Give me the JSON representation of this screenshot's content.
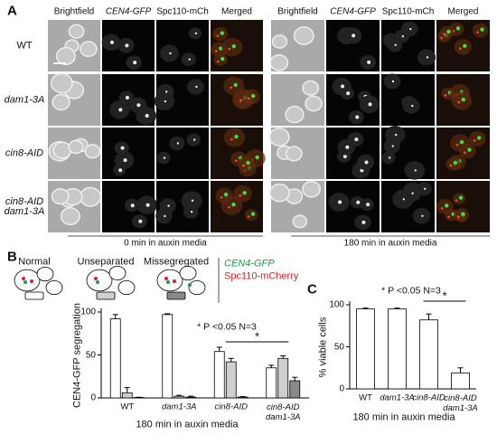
{
  "panel_a": {
    "label": "A",
    "columns": [
      "Brightfield",
      "CEN4-GFP",
      "Spc110-mCh",
      "Merged"
    ],
    "rows": [
      "WT",
      "dam1-3A",
      "cin8-AID",
      "cin8-AID dam1-3A"
    ],
    "time_labels": [
      "0 min in auxin media",
      "180 min in auxin media"
    ]
  },
  "chart_data": [
    {
      "type": "bar",
      "panel": "B",
      "ylabel": "CEN4-GFP segregation",
      "xlabel": "180 min in auxin media",
      "categories": [
        "WT",
        "dam1-3A",
        "cin8-AID",
        "cin8-AID dam1-3A"
      ],
      "series": [
        {
          "name": "Normal",
          "color": "#ffffff",
          "values": [
            92,
            97,
            54,
            35
          ],
          "errors": [
            5,
            1,
            5,
            3
          ]
        },
        {
          "name": "Unseparated",
          "color": "#cfcfcf",
          "values": [
            6,
            2,
            42,
            46
          ],
          "errors": [
            6,
            1,
            4,
            3
          ]
        },
        {
          "name": "Missegregated",
          "color": "#8a8a8a",
          "values": [
            0.5,
            1,
            1,
            20
          ],
          "errors": [
            0.3,
            1,
            0.5,
            4
          ]
        }
      ],
      "ylim": [
        0,
        100
      ],
      "yticks": [
        0,
        50,
        100
      ],
      "annotation": "* P <0.05 N=3",
      "significance": "*",
      "marker_labels": [
        "CEN4-GFP",
        "Spc110-mCherry"
      ],
      "marker_colors": [
        "#18a040",
        "#e02020"
      ]
    },
    {
      "type": "bar",
      "panel": "C",
      "ylabel": "% viable cells",
      "xlabel": "180 min in auxin media",
      "categories": [
        "WT",
        "dam1-3A",
        "cin8-AID",
        "cin8-AID dam1-3A"
      ],
      "values": [
        95,
        95,
        82,
        19
      ],
      "errors": [
        1,
        1,
        7,
        6
      ],
      "color": "#ffffff",
      "ylim": [
        0,
        100
      ],
      "yticks": [
        0,
        50,
        100
      ],
      "annotation": "* P <0.05 N=3",
      "significance": "*"
    }
  ]
}
